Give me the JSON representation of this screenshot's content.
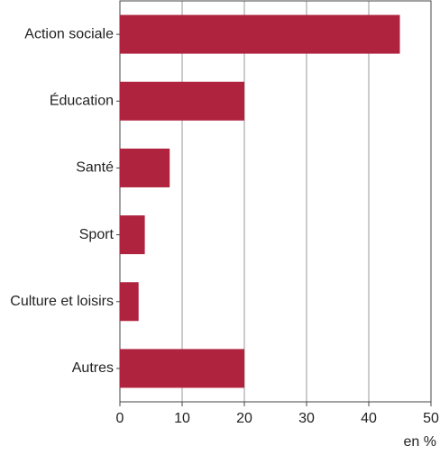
{
  "chart_data": {
    "type": "bar",
    "orientation": "horizontal",
    "categories": [
      "Action sociale",
      "Éducation",
      "Santé",
      "Sport",
      "Culture et loisirs",
      "Autres"
    ],
    "values": [
      45,
      20,
      8,
      4,
      3,
      20
    ],
    "color": "#b0233f",
    "xlim": [
      0,
      50
    ],
    "xticks": [
      0,
      10,
      20,
      30,
      40,
      50
    ],
    "x_label": "en %",
    "grid": true
  }
}
